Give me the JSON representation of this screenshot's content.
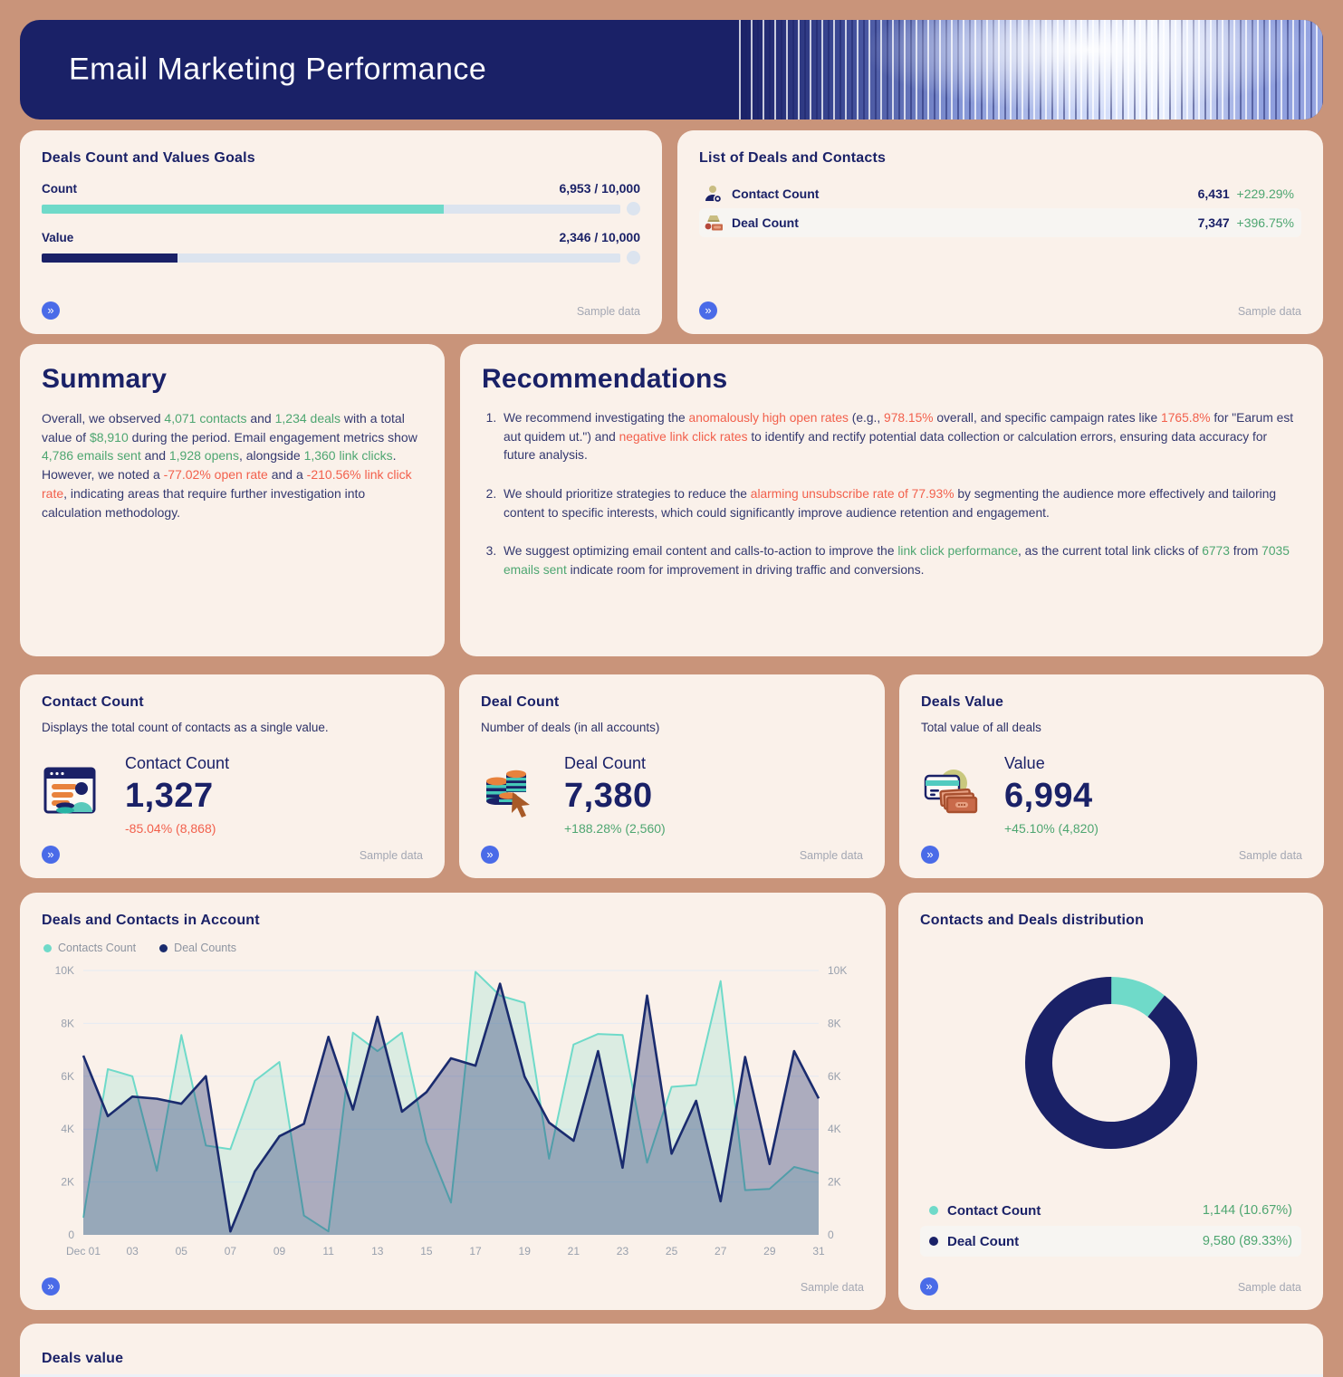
{
  "colors": {
    "navy": "#33386F",
    "green": "#4EA671",
    "red": "#F2604C",
    "teal": "#6FDAC9",
    "dark_navy": "#1A2167",
    "line_navy": "#1A2B6E",
    "accent_blue": "#4A6BE8"
  },
  "icons": {
    "expand": "»"
  },
  "header": {
    "title": "Email Marketing Performance"
  },
  "goals_card": {
    "title": "Deals Count and Values Goals",
    "rows": [
      {
        "label": "Count",
        "value_text": "6,953 / 10,000",
        "pct": 69.53,
        "color": "#6FDAC9"
      },
      {
        "label": "Value",
        "value_text": "2,346 / 10,000",
        "pct": 23.46,
        "color": "#1A2167"
      }
    ],
    "sample_label": "Sample data"
  },
  "list_card": {
    "title": "List of Deals and Contacts",
    "rows": [
      {
        "icon": "contact-person-icon",
        "label": "Contact Count",
        "value": "6,431",
        "change": "+229.29%"
      },
      {
        "icon": "deal-money-icon",
        "label": "Deal Count",
        "value": "7,347",
        "change": "+396.75%"
      }
    ],
    "sample_label": "Sample data"
  },
  "summary_card": {
    "title": "Summary",
    "segments": [
      {
        "t": "Overall, we observed ",
        "c": "navy"
      },
      {
        "t": "4,071 contacts",
        "c": "green"
      },
      {
        "t": " and ",
        "c": "navy"
      },
      {
        "t": "1,234 deals",
        "c": "green"
      },
      {
        "t": " with a total value of ",
        "c": "navy"
      },
      {
        "t": "$8,910",
        "c": "green"
      },
      {
        "t": " during the period. Email engagement metrics show ",
        "c": "navy"
      },
      {
        "t": "4,786 emails sent",
        "c": "green"
      },
      {
        "t": " and ",
        "c": "navy"
      },
      {
        "t": "1,928 opens",
        "c": "green"
      },
      {
        "t": ", alongside ",
        "c": "navy"
      },
      {
        "t": "1,360 link clicks",
        "c": "green"
      },
      {
        "t": ". However, we noted a ",
        "c": "navy"
      },
      {
        "t": "-77.02% open rate",
        "c": "red"
      },
      {
        "t": " and a ",
        "c": "navy"
      },
      {
        "t": "-210.56% link click rate",
        "c": "red"
      },
      {
        "t": ", indicating areas that require further investigation into calculation methodology.",
        "c": "navy"
      }
    ]
  },
  "recommendations_card": {
    "title": "Recommendations",
    "items": [
      {
        "segments": [
          {
            "t": "We recommend investigating the ",
            "c": "navy"
          },
          {
            "t": "anomalously high open rates",
            "c": "red"
          },
          {
            "t": " (e.g., ",
            "c": "navy"
          },
          {
            "t": "978.15%",
            "c": "red"
          },
          {
            "t": " overall, and specific campaign rates like ",
            "c": "navy"
          },
          {
            "t": "1765.8%",
            "c": "red"
          },
          {
            "t": " for \"Earum est aut quidem ut.\") and ",
            "c": "navy"
          },
          {
            "t": "negative link click rates",
            "c": "red"
          },
          {
            "t": " to identify and rectify potential data collection or calculation errors, ensuring data accuracy for future analysis.",
            "c": "navy"
          }
        ]
      },
      {
        "segments": [
          {
            "t": "We should prioritize strategies to reduce the ",
            "c": "navy"
          },
          {
            "t": "alarming unsubscribe rate of 77.93%",
            "c": "red"
          },
          {
            "t": " by segmenting the audience more effectively and tailoring content to specific interests, which could significantly improve audience retention and engagement.",
            "c": "navy"
          }
        ]
      },
      {
        "segments": [
          {
            "t": "We suggest optimizing email content and calls-to-action to improve the ",
            "c": "navy"
          },
          {
            "t": "link click performance",
            "c": "green"
          },
          {
            "t": ", as the current total link clicks of ",
            "c": "navy"
          },
          {
            "t": "6773",
            "c": "green"
          },
          {
            "t": " from ",
            "c": "navy"
          },
          {
            "t": "7035 emails sent",
            "c": "green"
          },
          {
            "t": " indicate room for improvement in driving traffic and conversions.",
            "c": "navy"
          }
        ]
      }
    ]
  },
  "metric_cards": [
    {
      "title": "Contact Count",
      "subtitle": "Displays the total count of contacts as a single value.",
      "metric_label": "Contact Count",
      "value": "1,327",
      "change": "-85.04% (8,868)",
      "change_color": "#F2604C",
      "icon": "contacts-browser-icon",
      "sample_label": "Sample data"
    },
    {
      "title": "Deal Count",
      "subtitle": "Number of deals (in all accounts)",
      "metric_label": "Deal Count",
      "value": "7,380",
      "change": "+188.28% (2,560)",
      "change_color": "#4EA671",
      "icon": "coins-cursor-icon",
      "sample_label": "Sample data"
    },
    {
      "title": "Deals Value",
      "subtitle": "Total value of all deals",
      "metric_label": "Value",
      "value": "6,994",
      "change": "+45.10% (4,820)",
      "change_color": "#4EA671",
      "icon": "card-cash-icon",
      "sample_label": "Sample data"
    }
  ],
  "chart_data": [
    {
      "type": "area",
      "title": "Deals and Contacts in Account",
      "x": [
        1,
        2,
        3,
        4,
        5,
        6,
        7,
        8,
        9,
        10,
        11,
        12,
        13,
        14,
        15,
        16,
        17,
        18,
        19,
        20,
        21,
        22,
        23,
        24,
        25,
        26,
        27,
        28,
        29,
        30,
        31
      ],
      "xticks": [
        "Dec 01",
        "03",
        "05",
        "07",
        "09",
        "11",
        "13",
        "15",
        "17",
        "19",
        "21",
        "23",
        "25",
        "27",
        "29",
        "31"
      ],
      "yticks": [
        "0",
        "2K",
        "4K",
        "6K",
        "8K",
        "10K"
      ],
      "ylim": [
        0,
        10000
      ],
      "grid": true,
      "legend_position": "top-left",
      "series": [
        {
          "name": "Contacts Count",
          "color": "#6FDAC9",
          "fill_opacity": 0.22,
          "values": [
            650,
            6270,
            6000,
            2420,
            7560,
            3380,
            3240,
            5830,
            6540,
            730,
            130,
            7650,
            6950,
            7650,
            3510,
            1220,
            9950,
            9050,
            8780,
            2880,
            7200,
            7600,
            7560,
            2730,
            5600,
            5670,
            9600,
            1690,
            1740,
            2570,
            2330
          ]
        },
        {
          "name": "Deal Counts",
          "color": "#1A2B6E",
          "fill_opacity": 0.35,
          "values": [
            6780,
            4490,
            5230,
            5150,
            4960,
            6000,
            130,
            2400,
            3730,
            4200,
            7490,
            4740,
            8250,
            4660,
            5400,
            6680,
            6400,
            9500,
            5990,
            4250,
            3560,
            6950,
            2540,
            9050,
            3070,
            5070,
            1270,
            6730,
            2680,
            6950,
            5160
          ]
        }
      ],
      "sample_label": "Sample data"
    },
    {
      "type": "pie",
      "title": "Contacts and Deals distribution",
      "slices": [
        {
          "label": "Contact Count",
          "value": 1144,
          "pct": 10.67,
          "display": "1,144 (10.67%)",
          "color": "#6FDAC9"
        },
        {
          "label": "Deal Count",
          "value": 9580,
          "pct": 89.33,
          "display": "9,580 (89.33%)",
          "color": "#1A2167"
        }
      ],
      "legend_position": "bottom",
      "sample_label": "Sample data"
    }
  ],
  "deals_value_card": {
    "title": "Deals value"
  }
}
